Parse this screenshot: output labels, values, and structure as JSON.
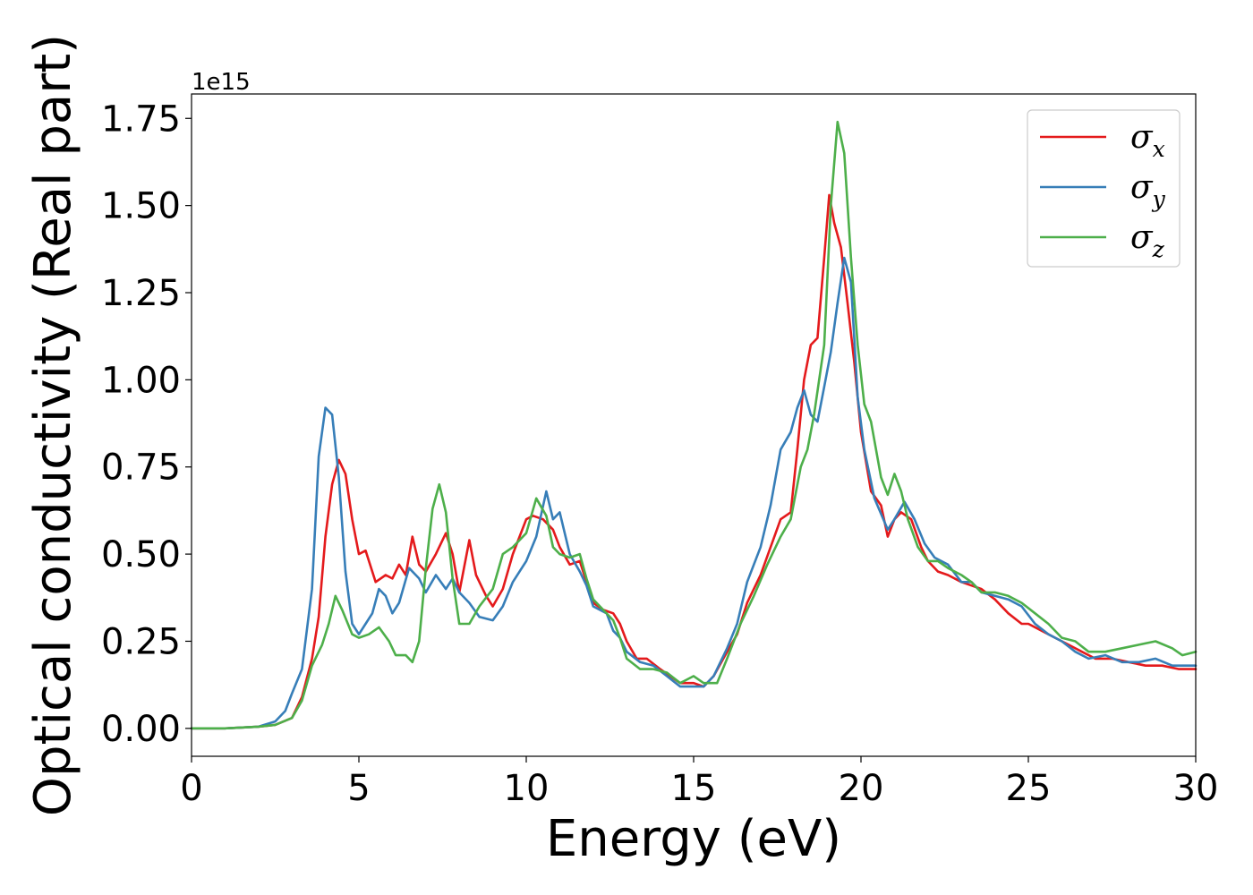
{
  "chart_data": {
    "type": "line",
    "title": "",
    "xlabel": "Energy (eV)",
    "ylabel": "Optical conductivity (Real part)",
    "y_offset_label": "1e15",
    "xlim": [
      0,
      30
    ],
    "ylim": [
      -0.08,
      1.82
    ],
    "xticks": [
      0,
      5,
      10,
      15,
      20,
      25,
      30
    ],
    "yticks": [
      0.0,
      0.25,
      0.5,
      0.75,
      1.0,
      1.25,
      1.5,
      1.75
    ],
    "ytick_labels": [
      "0.00",
      "0.25",
      "0.50",
      "0.75",
      "1.00",
      "1.25",
      "1.50",
      "1.75"
    ],
    "grid": false,
    "legend_position": "top-right",
    "series": [
      {
        "name": "σx",
        "label_base": "σ",
        "label_sub": "x",
        "color": "#e41a1c",
        "points": [
          [
            0,
            0
          ],
          [
            1,
            0.0
          ],
          [
            2,
            0.005
          ],
          [
            2.5,
            0.01
          ],
          [
            3,
            0.03
          ],
          [
            3.3,
            0.09
          ],
          [
            3.6,
            0.2
          ],
          [
            3.8,
            0.32
          ],
          [
            4,
            0.55
          ],
          [
            4.2,
            0.7
          ],
          [
            4.4,
            0.77
          ],
          [
            4.6,
            0.73
          ],
          [
            4.8,
            0.6
          ],
          [
            5,
            0.5
          ],
          [
            5.2,
            0.51
          ],
          [
            5.5,
            0.42
          ],
          [
            5.8,
            0.44
          ],
          [
            6,
            0.43
          ],
          [
            6.2,
            0.47
          ],
          [
            6.4,
            0.44
          ],
          [
            6.6,
            0.55
          ],
          [
            6.8,
            0.47
          ],
          [
            7,
            0.45
          ],
          [
            7.3,
            0.5
          ],
          [
            7.6,
            0.56
          ],
          [
            7.8,
            0.5
          ],
          [
            8,
            0.39
          ],
          [
            8.3,
            0.54
          ],
          [
            8.5,
            0.44
          ],
          [
            8.8,
            0.38
          ],
          [
            9,
            0.35
          ],
          [
            9.3,
            0.4
          ],
          [
            9.6,
            0.5
          ],
          [
            10,
            0.6
          ],
          [
            10.2,
            0.61
          ],
          [
            10.5,
            0.6
          ],
          [
            10.8,
            0.57
          ],
          [
            11,
            0.52
          ],
          [
            11.3,
            0.47
          ],
          [
            11.6,
            0.48
          ],
          [
            11.8,
            0.42
          ],
          [
            12,
            0.36
          ],
          [
            12.3,
            0.34
          ],
          [
            12.6,
            0.33
          ],
          [
            12.8,
            0.3
          ],
          [
            13,
            0.25
          ],
          [
            13.3,
            0.2
          ],
          [
            13.6,
            0.2
          ],
          [
            14,
            0.17
          ],
          [
            14.3,
            0.15
          ],
          [
            14.6,
            0.13
          ],
          [
            15,
            0.13
          ],
          [
            15.3,
            0.12
          ],
          [
            15.6,
            0.15
          ],
          [
            16,
            0.22
          ],
          [
            16.3,
            0.27
          ],
          [
            16.6,
            0.36
          ],
          [
            17,
            0.44
          ],
          [
            17.3,
            0.52
          ],
          [
            17.6,
            0.6
          ],
          [
            17.9,
            0.62
          ],
          [
            18.1,
            0.8
          ],
          [
            18.3,
            1.0
          ],
          [
            18.5,
            1.1
          ],
          [
            18.7,
            1.12
          ],
          [
            18.9,
            1.35
          ],
          [
            19.05,
            1.53
          ],
          [
            19.2,
            1.45
          ],
          [
            19.4,
            1.38
          ],
          [
            19.6,
            1.22
          ],
          [
            19.8,
            1.05
          ],
          [
            20,
            0.85
          ],
          [
            20.3,
            0.68
          ],
          [
            20.6,
            0.64
          ],
          [
            20.8,
            0.55
          ],
          [
            21,
            0.6
          ],
          [
            21.2,
            0.62
          ],
          [
            21.5,
            0.6
          ],
          [
            21.8,
            0.52
          ],
          [
            22,
            0.48
          ],
          [
            22.3,
            0.45
          ],
          [
            22.6,
            0.44
          ],
          [
            23,
            0.42
          ],
          [
            23.3,
            0.41
          ],
          [
            23.6,
            0.4
          ],
          [
            24,
            0.37
          ],
          [
            24.4,
            0.33
          ],
          [
            24.8,
            0.3
          ],
          [
            25,
            0.3
          ],
          [
            25.4,
            0.28
          ],
          [
            25.8,
            0.26
          ],
          [
            26.2,
            0.24
          ],
          [
            26.6,
            0.22
          ],
          [
            27,
            0.2
          ],
          [
            27.5,
            0.2
          ],
          [
            28,
            0.19
          ],
          [
            28.5,
            0.18
          ],
          [
            29,
            0.18
          ],
          [
            29.5,
            0.17
          ],
          [
            30,
            0.17
          ]
        ]
      },
      {
        "name": "σy",
        "label_base": "σ",
        "label_sub": "y",
        "color": "#377eb8",
        "points": [
          [
            0,
            0
          ],
          [
            1,
            0.0
          ],
          [
            2,
            0.005
          ],
          [
            2.5,
            0.02
          ],
          [
            2.8,
            0.05
          ],
          [
            3,
            0.1
          ],
          [
            3.3,
            0.17
          ],
          [
            3.6,
            0.4
          ],
          [
            3.8,
            0.78
          ],
          [
            4,
            0.92
          ],
          [
            4.2,
            0.9
          ],
          [
            4.4,
            0.72
          ],
          [
            4.6,
            0.45
          ],
          [
            4.8,
            0.3
          ],
          [
            5,
            0.27
          ],
          [
            5.2,
            0.3
          ],
          [
            5.4,
            0.33
          ],
          [
            5.6,
            0.4
          ],
          [
            5.8,
            0.38
          ],
          [
            6,
            0.33
          ],
          [
            6.2,
            0.36
          ],
          [
            6.5,
            0.46
          ],
          [
            6.8,
            0.43
          ],
          [
            7,
            0.39
          ],
          [
            7.3,
            0.44
          ],
          [
            7.6,
            0.4
          ],
          [
            7.8,
            0.43
          ],
          [
            8,
            0.39
          ],
          [
            8.3,
            0.36
          ],
          [
            8.6,
            0.32
          ],
          [
            9,
            0.31
          ],
          [
            9.3,
            0.35
          ],
          [
            9.6,
            0.42
          ],
          [
            10,
            0.48
          ],
          [
            10.3,
            0.55
          ],
          [
            10.6,
            0.68
          ],
          [
            10.8,
            0.6
          ],
          [
            11,
            0.62
          ],
          [
            11.3,
            0.5
          ],
          [
            11.6,
            0.45
          ],
          [
            11.8,
            0.41
          ],
          [
            12,
            0.35
          ],
          [
            12.4,
            0.33
          ],
          [
            12.6,
            0.28
          ],
          [
            12.8,
            0.26
          ],
          [
            13,
            0.22
          ],
          [
            13.4,
            0.19
          ],
          [
            13.8,
            0.18
          ],
          [
            14.2,
            0.15
          ],
          [
            14.6,
            0.12
          ],
          [
            15,
            0.12
          ],
          [
            15.3,
            0.12
          ],
          [
            15.6,
            0.15
          ],
          [
            16,
            0.23
          ],
          [
            16.3,
            0.3
          ],
          [
            16.6,
            0.42
          ],
          [
            17,
            0.52
          ],
          [
            17.3,
            0.64
          ],
          [
            17.6,
            0.8
          ],
          [
            17.9,
            0.85
          ],
          [
            18.1,
            0.92
          ],
          [
            18.3,
            0.97
          ],
          [
            18.5,
            0.9
          ],
          [
            18.7,
            0.88
          ],
          [
            18.9,
            0.98
          ],
          [
            19.1,
            1.08
          ],
          [
            19.3,
            1.22
          ],
          [
            19.5,
            1.35
          ],
          [
            19.7,
            1.28
          ],
          [
            19.9,
            0.95
          ],
          [
            20.1,
            0.8
          ],
          [
            20.4,
            0.66
          ],
          [
            20.8,
            0.57
          ],
          [
            21,
            0.6
          ],
          [
            21.3,
            0.65
          ],
          [
            21.6,
            0.6
          ],
          [
            21.9,
            0.53
          ],
          [
            22.2,
            0.49
          ],
          [
            22.6,
            0.47
          ],
          [
            23,
            0.42
          ],
          [
            23.3,
            0.42
          ],
          [
            23.6,
            0.39
          ],
          [
            24,
            0.38
          ],
          [
            24.4,
            0.37
          ],
          [
            24.8,
            0.35
          ],
          [
            25.2,
            0.3
          ],
          [
            25.6,
            0.27
          ],
          [
            26,
            0.25
          ],
          [
            26.4,
            0.22
          ],
          [
            26.8,
            0.2
          ],
          [
            27.3,
            0.21
          ],
          [
            27.8,
            0.19
          ],
          [
            28.3,
            0.19
          ],
          [
            28.8,
            0.2
          ],
          [
            29.3,
            0.18
          ],
          [
            30,
            0.18
          ]
        ]
      },
      {
        "name": "σz",
        "label_base": "σ",
        "label_sub": "z",
        "color": "#4daf4a",
        "points": [
          [
            0,
            0
          ],
          [
            1,
            0.0
          ],
          [
            2,
            0.005
          ],
          [
            2.5,
            0.01
          ],
          [
            3,
            0.03
          ],
          [
            3.3,
            0.08
          ],
          [
            3.6,
            0.18
          ],
          [
            3.9,
            0.24
          ],
          [
            4.1,
            0.3
          ],
          [
            4.3,
            0.38
          ],
          [
            4.5,
            0.34
          ],
          [
            4.8,
            0.27
          ],
          [
            5,
            0.26
          ],
          [
            5.3,
            0.27
          ],
          [
            5.6,
            0.29
          ],
          [
            5.9,
            0.25
          ],
          [
            6.1,
            0.21
          ],
          [
            6.4,
            0.21
          ],
          [
            6.6,
            0.19
          ],
          [
            6.8,
            0.25
          ],
          [
            7,
            0.46
          ],
          [
            7.2,
            0.63
          ],
          [
            7.4,
            0.7
          ],
          [
            7.6,
            0.62
          ],
          [
            7.8,
            0.43
          ],
          [
            8,
            0.3
          ],
          [
            8.3,
            0.3
          ],
          [
            8.6,
            0.35
          ],
          [
            9,
            0.4
          ],
          [
            9.3,
            0.5
          ],
          [
            9.6,
            0.52
          ],
          [
            10,
            0.56
          ],
          [
            10.3,
            0.66
          ],
          [
            10.6,
            0.61
          ],
          [
            10.8,
            0.52
          ],
          [
            11,
            0.5
          ],
          [
            11.3,
            0.49
          ],
          [
            11.6,
            0.5
          ],
          [
            11.8,
            0.43
          ],
          [
            12,
            0.37
          ],
          [
            12.3,
            0.34
          ],
          [
            12.6,
            0.31
          ],
          [
            12.8,
            0.26
          ],
          [
            13,
            0.2
          ],
          [
            13.4,
            0.17
          ],
          [
            13.8,
            0.17
          ],
          [
            14.2,
            0.16
          ],
          [
            14.6,
            0.13
          ],
          [
            15,
            0.15
          ],
          [
            15.3,
            0.13
          ],
          [
            15.7,
            0.13
          ],
          [
            16,
            0.2
          ],
          [
            16.4,
            0.3
          ],
          [
            16.8,
            0.38
          ],
          [
            17.2,
            0.47
          ],
          [
            17.6,
            0.55
          ],
          [
            17.9,
            0.6
          ],
          [
            18.2,
            0.75
          ],
          [
            18.4,
            0.8
          ],
          [
            18.6,
            0.9
          ],
          [
            18.9,
            1.1
          ],
          [
            19.1,
            1.5
          ],
          [
            19.3,
            1.74
          ],
          [
            19.5,
            1.65
          ],
          [
            19.7,
            1.35
          ],
          [
            19.9,
            1.1
          ],
          [
            20.1,
            0.93
          ],
          [
            20.3,
            0.88
          ],
          [
            20.6,
            0.72
          ],
          [
            20.8,
            0.67
          ],
          [
            21,
            0.73
          ],
          [
            21.2,
            0.68
          ],
          [
            21.4,
            0.6
          ],
          [
            21.7,
            0.52
          ],
          [
            22,
            0.48
          ],
          [
            22.3,
            0.48
          ],
          [
            22.6,
            0.46
          ],
          [
            23,
            0.44
          ],
          [
            23.3,
            0.42
          ],
          [
            23.6,
            0.39
          ],
          [
            24,
            0.39
          ],
          [
            24.4,
            0.38
          ],
          [
            24.8,
            0.36
          ],
          [
            25.2,
            0.33
          ],
          [
            25.6,
            0.3
          ],
          [
            26,
            0.26
          ],
          [
            26.4,
            0.25
          ],
          [
            26.8,
            0.22
          ],
          [
            27.3,
            0.22
          ],
          [
            27.8,
            0.23
          ],
          [
            28.3,
            0.24
          ],
          [
            28.8,
            0.25
          ],
          [
            29.3,
            0.23
          ],
          [
            29.6,
            0.21
          ],
          [
            30,
            0.22
          ]
        ]
      }
    ]
  }
}
